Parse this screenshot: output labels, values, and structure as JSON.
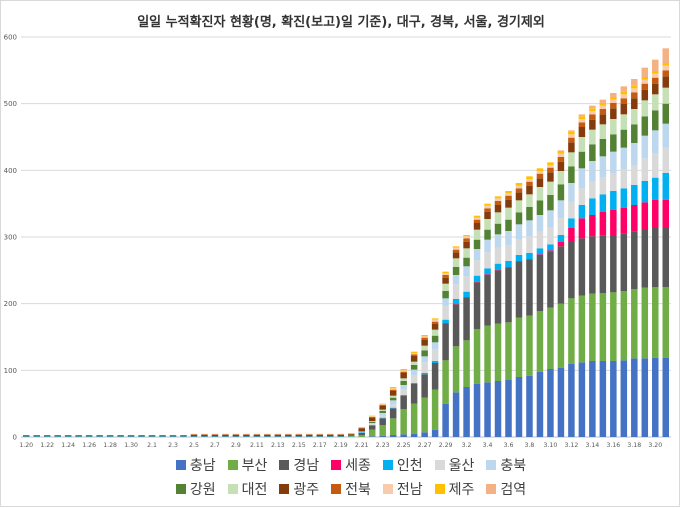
{
  "chart_data": {
    "type": "bar",
    "stacked": true,
    "title": "일일 누적확진자 현황(명, 확진(보고)일 기준), 대구, 경북, 서울, 경기제외",
    "ylim": [
      0,
      600
    ],
    "yticks": [
      0,
      100,
      200,
      300,
      400,
      500,
      600
    ],
    "grid": "horizontal",
    "legend_position": "bottom",
    "categories": [
      "1.20",
      "1.21",
      "1.22",
      "1.23",
      "1.24",
      "1.25",
      "1.26",
      "1.27",
      "1.28",
      "1.29",
      "1.30",
      "1.31",
      "2.1",
      "2.2",
      "2.3",
      "2.4",
      "2.5",
      "2.6",
      "2.7",
      "2.8",
      "2.9",
      "2.10",
      "2.11",
      "2.12",
      "2.13",
      "2.14",
      "2.15",
      "2.16",
      "2.17",
      "2.18",
      "2.19",
      "2.20",
      "2.21",
      "2.22",
      "2.23",
      "2.24",
      "2.25",
      "2.26",
      "2.27",
      "2.28",
      "2.29",
      "3.1",
      "3.2",
      "3.3",
      "3.4",
      "3.5",
      "3.6",
      "3.7",
      "3.8",
      "3.9",
      "3.10",
      "3.11",
      "3.12",
      "3.13",
      "3.14",
      "3.15",
      "3.16",
      "3.17",
      "3.18",
      "3.19",
      "3.20",
      "3.21"
    ],
    "xtick_labels": [
      "1.20",
      "1.22",
      "1.24",
      "1.26",
      "1.28",
      "1.30",
      "2.1",
      "2.3",
      "2.5",
      "2.7",
      "2.9",
      "2.11",
      "2.13",
      "2.15",
      "2.17",
      "2.19",
      "2.21",
      "2.23",
      "2.25",
      "2.27",
      "2.29",
      "3.2",
      "3.4",
      "3.6",
      "3.8",
      "3.10",
      "3.12",
      "3.14",
      "3.16",
      "3.18",
      "3.20"
    ],
    "series": [
      {
        "name": "충남",
        "color": "#4472c4",
        "values": [
          0,
          0,
          0,
          0,
          0,
          0,
          0,
          0,
          0,
          0,
          0,
          0,
          0,
          0,
          0,
          0,
          0,
          0,
          0,
          0,
          0,
          0,
          0,
          0,
          0,
          0,
          0,
          0,
          0,
          0,
          0,
          0,
          0,
          1,
          2,
          3,
          4,
          5,
          7,
          11,
          50,
          67,
          75,
          80,
          82,
          84,
          86,
          90,
          92,
          98,
          102,
          104,
          110,
          112,
          114,
          114,
          114,
          115,
          118,
          118,
          119,
          119
        ]
      },
      {
        "name": "부산",
        "color": "#70ad47",
        "values": [
          0,
          0,
          0,
          0,
          0,
          0,
          0,
          0,
          0,
          0,
          0,
          0,
          0,
          0,
          0,
          0,
          0,
          0,
          0,
          0,
          0,
          0,
          0,
          0,
          0,
          0,
          0,
          0,
          0,
          0,
          0,
          1,
          3,
          10,
          16,
          25,
          38,
          45,
          52,
          60,
          65,
          69,
          70,
          82,
          85,
          86,
          86,
          89,
          90,
          91,
          92,
          96,
          98,
          100,
          101,
          102,
          103,
          104,
          104,
          106,
          106,
          106
        ]
      },
      {
        "name": "경남",
        "color": "#595959",
        "values": [
          0,
          0,
          0,
          0,
          0,
          0,
          0,
          0,
          0,
          0,
          0,
          0,
          0,
          0,
          0,
          0,
          0,
          0,
          0,
          0,
          0,
          0,
          0,
          0,
          0,
          0,
          0,
          0,
          0,
          0,
          0,
          0,
          3,
          6,
          10,
          15,
          20,
          30,
          35,
          40,
          55,
          63,
          64,
          70,
          76,
          80,
          82,
          84,
          84,
          84,
          84,
          86,
          86,
          86,
          86,
          86,
          86,
          86,
          86,
          88,
          90,
          90
        ]
      },
      {
        "name": "세종",
        "color": "#ff0066",
        "values": [
          0,
          0,
          0,
          0,
          0,
          0,
          0,
          0,
          0,
          0,
          0,
          0,
          0,
          0,
          0,
          0,
          0,
          0,
          0,
          0,
          0,
          0,
          0,
          0,
          0,
          0,
          0,
          0,
          0,
          0,
          0,
          0,
          0,
          0,
          0,
          0,
          0,
          0,
          0,
          0,
          1,
          1,
          1,
          1,
          1,
          1,
          1,
          1,
          1,
          1,
          2,
          7,
          20,
          30,
          32,
          36,
          38,
          39,
          40,
          40,
          41,
          41
        ]
      },
      {
        "name": "인천",
        "color": "#00b0f0",
        "values": [
          1,
          1,
          1,
          1,
          1,
          1,
          1,
          1,
          1,
          1,
          1,
          1,
          1,
          1,
          1,
          1,
          1,
          1,
          1,
          1,
          1,
          1,
          1,
          1,
          1,
          1,
          1,
          1,
          1,
          1,
          1,
          1,
          1,
          1,
          1,
          1,
          1,
          1,
          2,
          3,
          5,
          7,
          8,
          9,
          9,
          9,
          9,
          9,
          9,
          9,
          9,
          10,
          14,
          20,
          25,
          26,
          28,
          29,
          30,
          32,
          33,
          40
        ]
      },
      {
        "name": "울산",
        "color": "#d9d9d9",
        "values": [
          0,
          0,
          0,
          0,
          0,
          0,
          0,
          0,
          0,
          0,
          0,
          0,
          0,
          0,
          0,
          0,
          0,
          0,
          0,
          0,
          0,
          0,
          0,
          0,
          0,
          0,
          0,
          0,
          0,
          0,
          0,
          0,
          0,
          1,
          3,
          5,
          8,
          12,
          16,
          18,
          20,
          22,
          23,
          23,
          24,
          24,
          24,
          24,
          25,
          25,
          25,
          25,
          25,
          25,
          26,
          26,
          27,
          28,
          30,
          34,
          36,
          38
        ]
      },
      {
        "name": "충북",
        "color": "#bdd7ee",
        "values": [
          0,
          0,
          0,
          0,
          0,
          0,
          0,
          0,
          0,
          0,
          0,
          0,
          0,
          0,
          0,
          0,
          0,
          0,
          0,
          0,
          0,
          0,
          0,
          0,
          0,
          0,
          0,
          0,
          0,
          0,
          0,
          0,
          1,
          2,
          4,
          6,
          7,
          8,
          9,
          10,
          12,
          14,
          15,
          17,
          19,
          20,
          21,
          22,
          24,
          25,
          26,
          27,
          28,
          30,
          30,
          31,
          32,
          33,
          33,
          34,
          35,
          36
        ]
      },
      {
        "name": "강원",
        "color": "#548235",
        "values": [
          0,
          0,
          0,
          0,
          0,
          0,
          0,
          0,
          0,
          0,
          0,
          0,
          0,
          0,
          0,
          0,
          0,
          0,
          0,
          0,
          0,
          0,
          0,
          0,
          0,
          0,
          0,
          0,
          0,
          0,
          0,
          0,
          1,
          2,
          3,
          4,
          6,
          7,
          9,
          10,
          11,
          12,
          13,
          14,
          15,
          16,
          17,
          18,
          20,
          22,
          23,
          24,
          25,
          25,
          25,
          26,
          26,
          27,
          28,
          29,
          30,
          30
        ]
      },
      {
        "name": "대전",
        "color": "#c5e0b4",
        "values": [
          0,
          0,
          0,
          0,
          0,
          0,
          0,
          0,
          0,
          0,
          0,
          0,
          0,
          0,
          0,
          0,
          0,
          0,
          0,
          0,
          0,
          0,
          0,
          0,
          0,
          0,
          0,
          0,
          0,
          0,
          0,
          0,
          0,
          1,
          2,
          3,
          4,
          5,
          7,
          9,
          11,
          13,
          14,
          15,
          16,
          17,
          18,
          18,
          19,
          20,
          20,
          20,
          21,
          22,
          22,
          22,
          23,
          23,
          23,
          24,
          24,
          24
        ]
      },
      {
        "name": "광주",
        "color": "#843c0c",
        "values": [
          1,
          1,
          1,
          1,
          1,
          1,
          1,
          1,
          1,
          1,
          1,
          1,
          1,
          1,
          1,
          1,
          2,
          2,
          2,
          2,
          2,
          2,
          2,
          2,
          2,
          2,
          2,
          2,
          2,
          2,
          2,
          2,
          4,
          5,
          6,
          7,
          8,
          9,
          9,
          9,
          9,
          9,
          10,
          10,
          11,
          11,
          12,
          12,
          13,
          13,
          14,
          14,
          15,
          15,
          15,
          15,
          16,
          16,
          16,
          16,
          16,
          17
        ]
      },
      {
        "name": "전북",
        "color": "#c55a11",
        "values": [
          1,
          1,
          1,
          1,
          1,
          1,
          1,
          1,
          1,
          1,
          1,
          1,
          1,
          1,
          1,
          1,
          1,
          1,
          1,
          1,
          1,
          1,
          1,
          1,
          1,
          1,
          1,
          1,
          1,
          1,
          1,
          1,
          1,
          1,
          1,
          2,
          2,
          2,
          3,
          3,
          4,
          4,
          5,
          5,
          5,
          6,
          6,
          6,
          6,
          7,
          7,
          7,
          7,
          7,
          8,
          8,
          8,
          8,
          9,
          9,
          9,
          9
        ]
      },
      {
        "name": "전남",
        "color": "#f8cbad",
        "values": [
          0,
          0,
          0,
          0,
          0,
          0,
          0,
          0,
          0,
          0,
          0,
          0,
          0,
          0,
          0,
          0,
          1,
          1,
          1,
          1,
          1,
          1,
          1,
          1,
          1,
          1,
          1,
          1,
          1,
          1,
          1,
          1,
          1,
          1,
          1,
          2,
          2,
          2,
          2,
          3,
          3,
          3,
          3,
          3,
          4,
          4,
          4,
          4,
          4,
          4,
          4,
          5,
          5,
          5,
          5,
          5,
          5,
          6,
          6,
          6,
          6,
          7
        ]
      },
      {
        "name": "제주",
        "color": "#ffc000",
        "values": [
          0,
          0,
          0,
          0,
          0,
          0,
          0,
          0,
          0,
          0,
          0,
          0,
          0,
          0,
          0,
          0,
          0,
          0,
          0,
          0,
          0,
          0,
          0,
          0,
          0,
          0,
          0,
          0,
          0,
          0,
          0,
          0,
          0,
          1,
          1,
          2,
          2,
          2,
          2,
          2,
          2,
          2,
          2,
          3,
          3,
          3,
          3,
          4,
          4,
          4,
          4,
          4,
          4,
          4,
          4,
          4,
          4,
          4,
          4,
          4,
          4,
          4
        ]
      },
      {
        "name": "검역",
        "color": "#f4b183",
        "values": [
          0,
          0,
          0,
          0,
          0,
          0,
          0,
          0,
          0,
          0,
          0,
          0,
          0,
          0,
          0,
          0,
          0,
          0,
          0,
          0,
          0,
          0,
          0,
          0,
          0,
          0,
          0,
          0,
          0,
          0,
          0,
          0,
          0,
          0,
          0,
          0,
          0,
          0,
          0,
          0,
          0,
          0,
          0,
          0,
          0,
          0,
          0,
          0,
          0,
          0,
          0,
          1,
          2,
          3,
          4,
          5,
          6,
          8,
          10,
          14,
          17,
          22
        ]
      }
    ]
  }
}
